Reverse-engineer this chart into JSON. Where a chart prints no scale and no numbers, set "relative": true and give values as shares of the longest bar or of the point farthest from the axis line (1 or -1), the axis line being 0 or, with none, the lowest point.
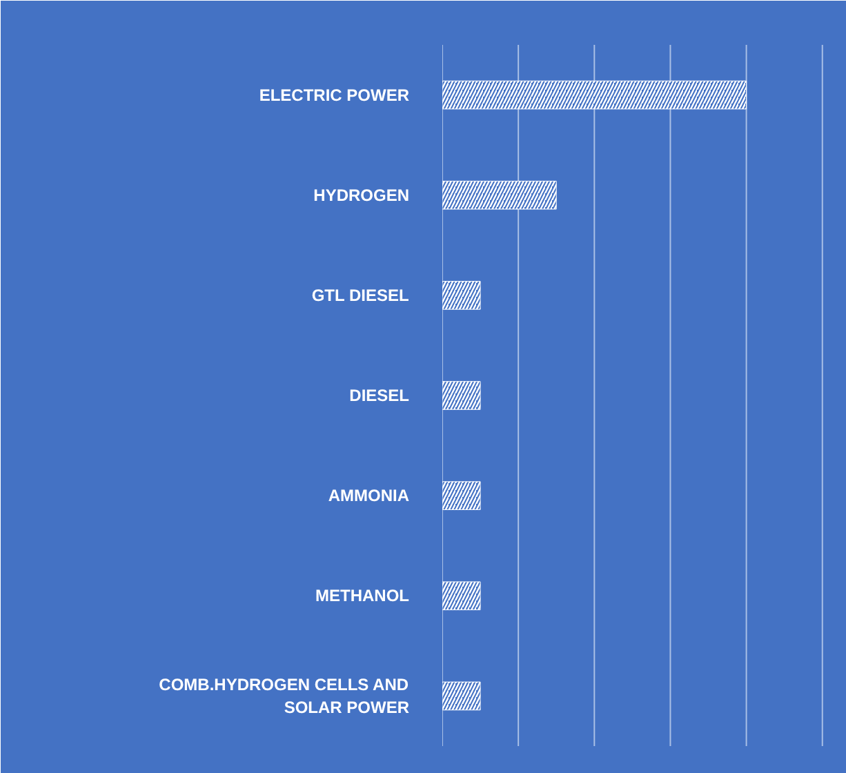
{
  "chart_data": {
    "type": "bar",
    "orientation": "horizontal",
    "relative": true,
    "ref_lines": [
      {
        "axis": "x",
        "value": 0,
        "color": "#a9bfe6"
      },
      {
        "axis": "x",
        "value": 0.25,
        "color": "#a9bfe6"
      },
      {
        "axis": "x",
        "value": 0.5,
        "color": "#a9bfe6"
      },
      {
        "axis": "x",
        "value": 0.75,
        "color": "#a9bfe6"
      },
      {
        "axis": "x",
        "value": 1,
        "color": "#a9bfe6"
      },
      {
        "axis": "x",
        "value": 1.25,
        "color": "#a9bfe6"
      }
    ],
    "categories": [
      "ELECTRIC POWER",
      "HYDROGEN",
      "GTL DIESEL",
      "DIESEL",
      "AMMONIA",
      "METHANOL",
      "COMB.HYDROGEN CELLS AND SOLAR POWER"
    ],
    "series": [
      {
        "color": "#ffffff",
        "values": [
          1,
          0.375,
          0.125,
          0.125,
          0.125,
          0.125,
          0.125
        ]
      }
    ]
  }
}
